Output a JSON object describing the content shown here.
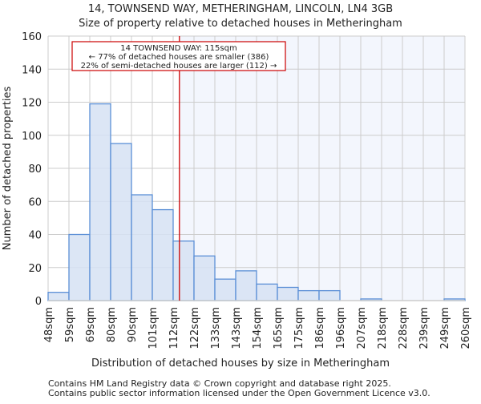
{
  "chart_data": {
    "type": "bar",
    "title": "14, TOWNSEND WAY, METHERINGHAM, LINCOLN, LN4 3GB",
    "subtitle": "Size of property relative to detached houses in Metheringham",
    "xlabel": "Distribution of detached houses by size in Metheringham",
    "ylabel": "Number of detached properties",
    "ylim": [
      0,
      160
    ],
    "yticks": [
      0,
      20,
      40,
      60,
      80,
      100,
      120,
      140,
      160
    ],
    "tick_labels": [
      "48sqm",
      "59sqm",
      "69sqm",
      "80sqm",
      "90sqm",
      "101sqm",
      "112sqm",
      "122sqm",
      "133sqm",
      "143sqm",
      "154sqm",
      "165sqm",
      "175sqm",
      "186sqm",
      "196sqm",
      "207sqm",
      "218sqm",
      "228sqm",
      "239sqm",
      "249sqm",
      "260sqm"
    ],
    "values": [
      5,
      40,
      119,
      95,
      64,
      55,
      36,
      27,
      13,
      18,
      10,
      8,
      6,
      6,
      0,
      1,
      0,
      0,
      0,
      1
    ],
    "grid": true,
    "marker": {
      "value": 115,
      "bin_index": 6.3,
      "color": "#cc0000"
    },
    "annotation": {
      "line1": "14 TOWNSEND WAY: 115sqm",
      "line2": "← 77% of detached houses are smaller (386)",
      "line3": "22% of semi-detached houses are larger (112) →"
    },
    "colors": {
      "bar_fill": "#d6e2f3",
      "bar_stroke": "#5b8fd6",
      "shade": "#f3f6fd"
    }
  },
  "footer": {
    "line1": "Contains HM Land Registry data © Crown copyright and database right 2025.",
    "line2": "Contains public sector information licensed under the Open Government Licence v3.0."
  }
}
